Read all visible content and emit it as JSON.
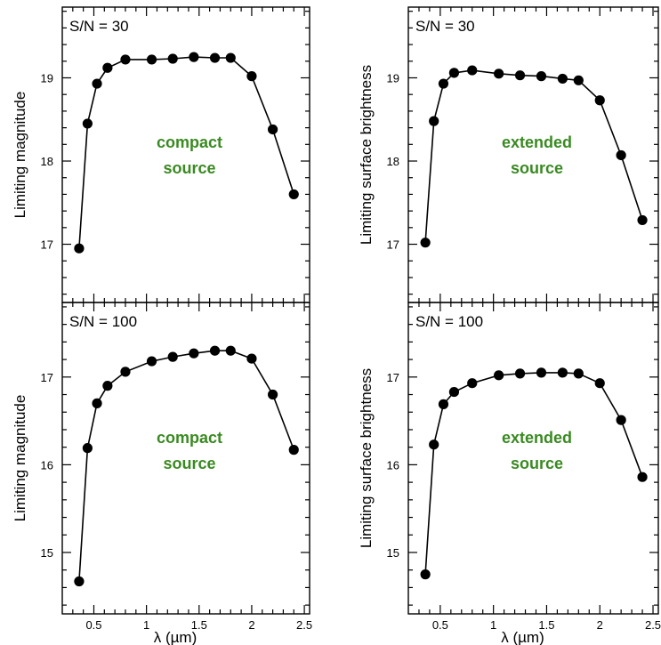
{
  "x_axis_label": "λ (µm)",
  "colors": {
    "source_label": "#3a8a22",
    "marks": "#000000"
  },
  "chart_data": [
    {
      "type": "line",
      "position": "top-left",
      "title": "S/N = 30",
      "annotation": [
        "compact",
        "source"
      ],
      "xlabel": "",
      "ylabel": "Limiting magnitude",
      "xlim": [
        0.2,
        2.55
      ],
      "ylim": [
        16.3,
        19.85
      ],
      "xticks_labels": [],
      "yticks": [
        17,
        18,
        19
      ],
      "x": [
        0.36,
        0.44,
        0.53,
        0.63,
        0.8,
        1.05,
        1.25,
        1.45,
        1.65,
        1.8,
        2.0,
        2.2,
        2.4
      ],
      "values": [
        16.95,
        18.45,
        18.93,
        19.12,
        19.22,
        19.22,
        19.23,
        19.25,
        19.24,
        19.24,
        19.02,
        18.38,
        17.6
      ]
    },
    {
      "type": "line",
      "position": "top-right",
      "title": "S/N = 30",
      "annotation": [
        "extended",
        "source"
      ],
      "xlabel": "",
      "ylabel": "Limiting surface brightness",
      "xlim": [
        0.2,
        2.55
      ],
      "ylim": [
        16.3,
        19.85
      ],
      "xticks_labels": [],
      "yticks": [
        17,
        18,
        19
      ],
      "x": [
        0.36,
        0.44,
        0.53,
        0.63,
        0.8,
        1.05,
        1.25,
        1.45,
        1.65,
        1.8,
        2.0,
        2.2,
        2.4
      ],
      "values": [
        17.02,
        18.48,
        18.93,
        19.06,
        19.09,
        19.05,
        19.03,
        19.02,
        18.99,
        18.97,
        18.73,
        18.07,
        17.29
      ]
    },
    {
      "type": "line",
      "position": "bottom-left",
      "title": "S/N = 100",
      "annotation": [
        "compact",
        "source"
      ],
      "xlabel": "λ (µm)",
      "ylabel": "Limiting magnitude",
      "xlim": [
        0.2,
        2.55
      ],
      "ylim": [
        14.3,
        17.85
      ],
      "xticks": [
        0.5,
        1,
        1.5,
        2,
        2.5
      ],
      "xticks_labels": [
        "0.5",
        "1",
        "1.5",
        "2",
        "2.5"
      ],
      "yticks": [
        15,
        16,
        17
      ],
      "x": [
        0.36,
        0.44,
        0.53,
        0.63,
        0.8,
        1.05,
        1.25,
        1.45,
        1.65,
        1.8,
        2.0,
        2.2,
        2.4
      ],
      "values": [
        14.67,
        16.19,
        16.7,
        16.9,
        17.06,
        17.18,
        17.23,
        17.27,
        17.3,
        17.3,
        17.21,
        16.8,
        16.17
      ]
    },
    {
      "type": "line",
      "position": "bottom-right",
      "title": "S/N = 100",
      "annotation": [
        "extended",
        "source"
      ],
      "xlabel": "λ (µm)",
      "ylabel": "Limiting surface brightness",
      "xlim": [
        0.2,
        2.55
      ],
      "ylim": [
        14.3,
        17.85
      ],
      "xticks": [
        0.5,
        1,
        1.5,
        2,
        2.5
      ],
      "xticks_labels": [
        "0.5",
        "1",
        "1.5",
        "2",
        "2.5"
      ],
      "yticks": [
        15,
        16,
        17
      ],
      "x": [
        0.36,
        0.44,
        0.53,
        0.63,
        0.8,
        1.05,
        1.25,
        1.45,
        1.65,
        1.8,
        2.0,
        2.2,
        2.4
      ],
      "values": [
        14.75,
        16.23,
        16.69,
        16.83,
        16.93,
        17.02,
        17.04,
        17.05,
        17.05,
        17.04,
        16.93,
        16.51,
        15.86
      ]
    }
  ]
}
